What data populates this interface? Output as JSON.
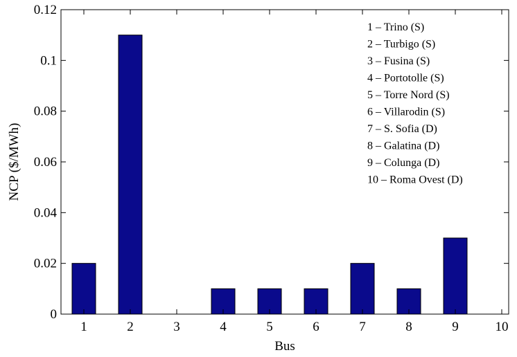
{
  "chart_data": {
    "type": "bar",
    "categories": [
      "1",
      "2",
      "3",
      "4",
      "5",
      "6",
      "7",
      "8",
      "9",
      "10"
    ],
    "values": [
      0.02,
      0.11,
      0,
      0.01,
      0.01,
      0.01,
      0.02,
      0.01,
      0.03,
      0
    ],
    "xlabel": "Bus",
    "ylabel": "NCP ($/MWh)",
    "ylim": [
      0,
      0.12
    ],
    "yticks": [
      "0",
      "0.02",
      "0.04",
      "0.06",
      "0.08",
      "0.1",
      "0.12"
    ],
    "bar_color": "#0a0a8c",
    "grid": false,
    "annotations": [
      "1 – Trino (S)",
      "2 – Turbigo (S)",
      "3 – Fusina (S)",
      "4 – Portotolle (S)",
      "5 – Torre Nord (S)",
      "6 – Villarodin (S)",
      "7 – S. Sofia (D)",
      "8 – Galatina (D)",
      "9 – Colunga (D)",
      "10 – Roma Ovest (D)"
    ]
  }
}
